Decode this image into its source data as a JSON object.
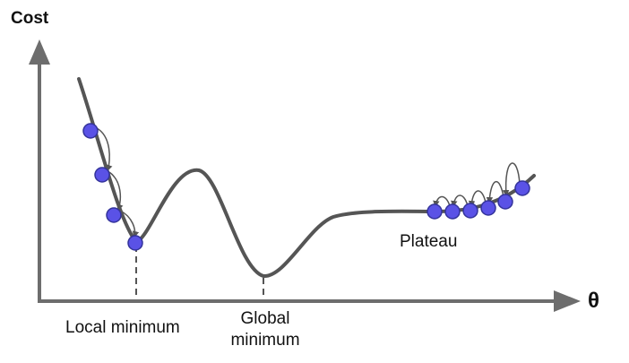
{
  "axes": {
    "y_label": "Cost",
    "x_label": "θ"
  },
  "annotations": {
    "local_minimum_label": "Local minimum",
    "global_minimum_line1": "Global",
    "global_minimum_line2": "minimum",
    "plateau_label": "Plateau"
  },
  "colors": {
    "axis": "#6d6d6d",
    "curve": "#555555",
    "ball_fill": "#5a52e6",
    "ball_stroke": "#33339a",
    "arrow": "#555555",
    "guide_line": "#555555",
    "text": "#111111"
  }
}
